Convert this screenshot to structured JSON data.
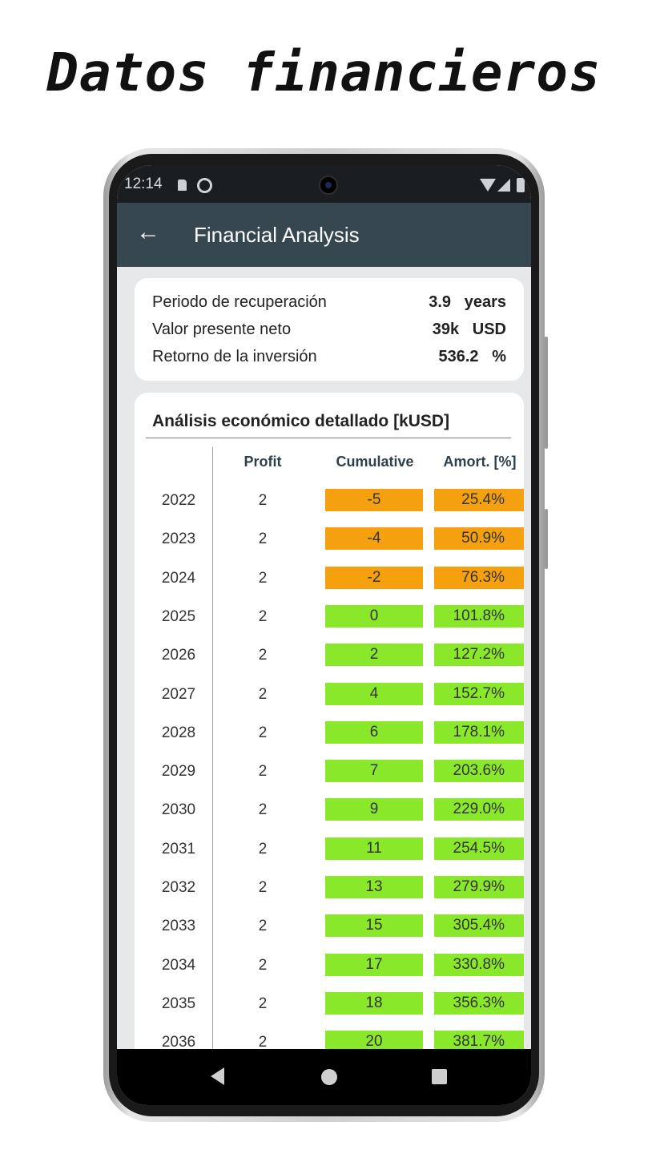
{
  "headline": "Datos financieros",
  "status_bar": {
    "time": "12:14",
    "icons": [
      "sd-card-icon",
      "sync-icon",
      "wifi-icon",
      "signal-icon",
      "battery-icon"
    ]
  },
  "app_bar": {
    "back_icon": "arrow-left-icon",
    "title": "Financial Analysis"
  },
  "summary": [
    {
      "label": "Periodo de recuperación",
      "value": "3.9   years"
    },
    {
      "label": "Valor presente neto",
      "value": "39k   USD"
    },
    {
      "label": "Retorno de la inversión",
      "value": "536.2   %"
    }
  ],
  "detail": {
    "title": "Análisis económico detallado [kUSD]",
    "headers": {
      "year": "",
      "profit": "Profit",
      "cumulative": "Cumulative",
      "amort": "Amort. [%]"
    },
    "colors": {
      "negative": "#f5a00f",
      "positive": "#8ae82b"
    },
    "rows": [
      {
        "year": "2022",
        "profit": "2",
        "cumulative": "-5",
        "amort": "25.4%",
        "status": "negative"
      },
      {
        "year": "2023",
        "profit": "2",
        "cumulative": "-4",
        "amort": "50.9%",
        "status": "negative"
      },
      {
        "year": "2024",
        "profit": "2",
        "cumulative": "-2",
        "amort": "76.3%",
        "status": "negative"
      },
      {
        "year": "2025",
        "profit": "2",
        "cumulative": "0",
        "amort": "101.8%",
        "status": "positive"
      },
      {
        "year": "2026",
        "profit": "2",
        "cumulative": "2",
        "amort": "127.2%",
        "status": "positive"
      },
      {
        "year": "2027",
        "profit": "2",
        "cumulative": "4",
        "amort": "152.7%",
        "status": "positive"
      },
      {
        "year": "2028",
        "profit": "2",
        "cumulative": "6",
        "amort": "178.1%",
        "status": "positive"
      },
      {
        "year": "2029",
        "profit": "2",
        "cumulative": "7",
        "amort": "203.6%",
        "status": "positive"
      },
      {
        "year": "2030",
        "profit": "2",
        "cumulative": "9",
        "amort": "229.0%",
        "status": "positive"
      },
      {
        "year": "2031",
        "profit": "2",
        "cumulative": "11",
        "amort": "254.5%",
        "status": "positive"
      },
      {
        "year": "2032",
        "profit": "2",
        "cumulative": "13",
        "amort": "279.9%",
        "status": "positive"
      },
      {
        "year": "2033",
        "profit": "2",
        "cumulative": "15",
        "amort": "305.4%",
        "status": "positive"
      },
      {
        "year": "2034",
        "profit": "2",
        "cumulative": "17",
        "amort": "330.8%",
        "status": "positive"
      },
      {
        "year": "2035",
        "profit": "2",
        "cumulative": "18",
        "amort": "356.3%",
        "status": "positive"
      },
      {
        "year": "2036",
        "profit": "2",
        "cumulative": "20",
        "amort": "381.7%",
        "status": "positive"
      }
    ]
  },
  "nav_bar": {
    "icons": [
      "nav-back-icon",
      "nav-home-icon",
      "nav-recents-icon"
    ]
  }
}
